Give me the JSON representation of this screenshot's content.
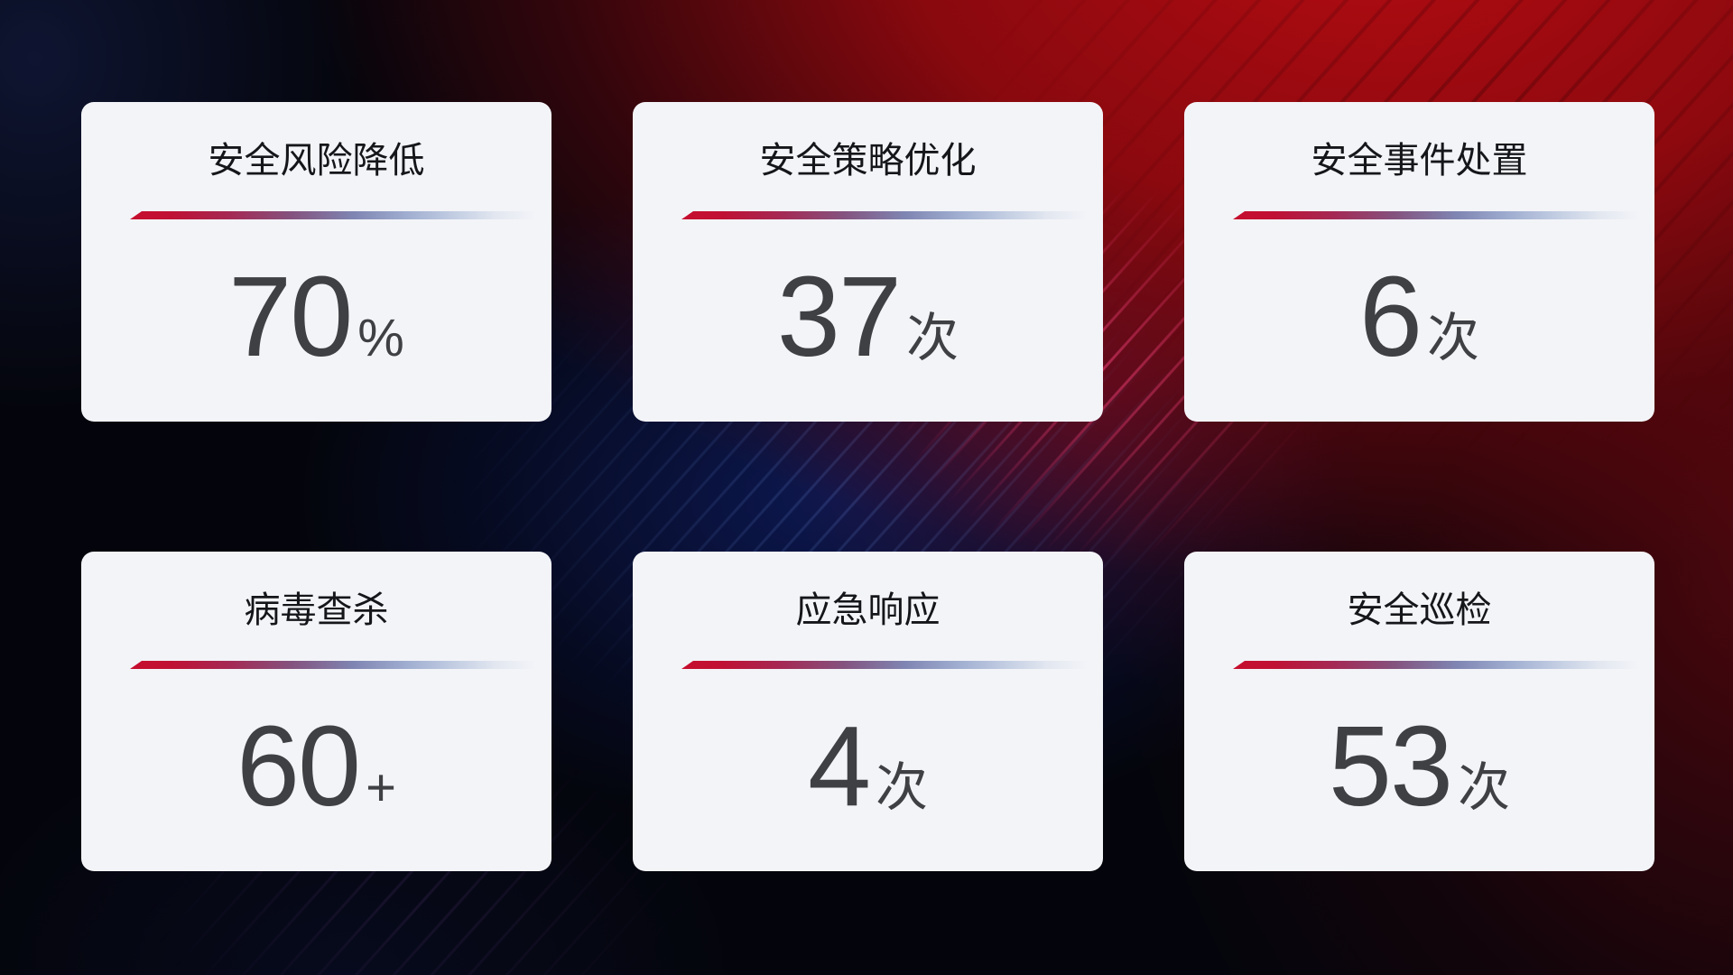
{
  "colors": {
    "card_background": "#f3f4f8",
    "title_text": "#15161a",
    "value_text": "#3f4043",
    "divider_red": "#c60e2e",
    "divider_blue": "#7f85b2",
    "divider_fade": "#e2e7f0",
    "background_red": "#b00c12",
    "background_navy": "#04050c",
    "background_blue_glow": "#10237c"
  },
  "cards": [
    {
      "id": "risk-reduction",
      "title": "安全风险降低",
      "value": "70",
      "suffix": "%"
    },
    {
      "id": "policy-optimization",
      "title": "安全策略优化",
      "value": "37",
      "suffix": "次"
    },
    {
      "id": "incident-handling",
      "title": "安全事件处置",
      "value": "6",
      "suffix": "次"
    },
    {
      "id": "virus-scan",
      "title": "病毒查杀",
      "value": "60",
      "suffix": "+"
    },
    {
      "id": "emergency-response",
      "title": "应急响应",
      "value": "4",
      "suffix": "次"
    },
    {
      "id": "security-inspection",
      "title": "安全巡检",
      "value": "53",
      "suffix": "次"
    }
  ]
}
